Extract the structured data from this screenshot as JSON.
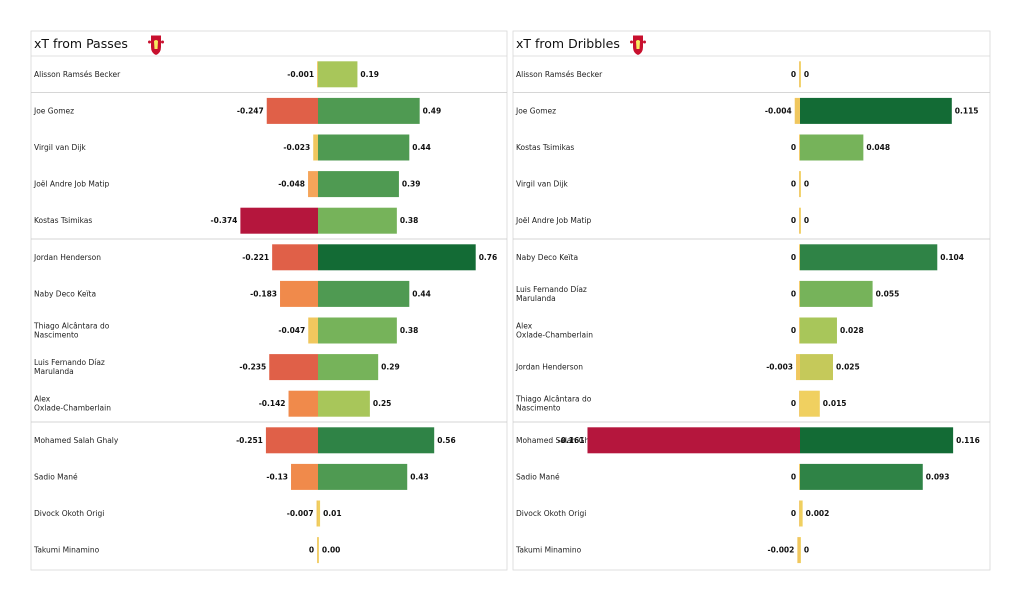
{
  "colors": {
    "neg_scale": [
      "#f0c75e",
      "#f5a55a",
      "#f08a4b",
      "#e06048",
      "#b5163d"
    ],
    "pos_scale": [
      "#f0d060",
      "#c5c95a",
      "#a8c65a",
      "#76b35a",
      "#4f9a52",
      "#2f8346",
      "#136b35"
    ],
    "crest_red": "#c8102e",
    "crest_gold": "#f6eb61",
    "frame": "#d8d8d8",
    "divider": "#c8c8c8"
  },
  "chart_data": [
    {
      "type": "bar",
      "title": "xT from Passes",
      "icon": "liverpool-crest-icon",
      "groups": [
        1,
        4,
        5,
        4
      ],
      "categories": [
        "Alisson Ramsés Becker",
        "Joe Gomez",
        "Virgil van Dijk",
        "Joël Andre Job Matip",
        "Kostas Tsimikas",
        "Jordan Henderson",
        "Naby Deco Keïta",
        "Thiago Alcântara do Nascimento",
        "Luis Fernando Díaz Marulanda",
        "Alex Oxlade-Chamberlain",
        "Mohamed  Salah Ghaly",
        "Sadio Mané",
        "Divock Okoth Origi",
        "Takumi Minamino"
      ],
      "series": [
        {
          "values": [
            -0.001,
            -0.247,
            -0.023,
            -0.048,
            -0.374,
            -0.221,
            -0.183,
            -0.047,
            -0.235,
            -0.142,
            -0.251,
            -0.13,
            -0.007,
            0
          ]
        },
        {
          "values": [
            0.19,
            0.49,
            0.44,
            0.39,
            0.38,
            0.76,
            0.44,
            0.38,
            0.29,
            0.25,
            0.56,
            0.43,
            0.01,
            0.0
          ]
        }
      ],
      "labels_neg": [
        "-0.001",
        "-0.247",
        "-0.023",
        "-0.048",
        "-0.374",
        "-0.221",
        "-0.183",
        "-0.047",
        "-0.235",
        "-0.142",
        "-0.251",
        "-0.13",
        "-0.007",
        "0"
      ],
      "labels_pos": [
        "0.19",
        "0.49",
        "0.44",
        "0.39",
        "0.38",
        "0.76",
        "0.44",
        "0.38",
        "0.29",
        "0.25",
        "0.56",
        "0.43",
        "0.01",
        "0.00"
      ],
      "neg_fill_levels": [
        0,
        3,
        0,
        1,
        4,
        3,
        2,
        0,
        3,
        2,
        3,
        2,
        0,
        0
      ],
      "pos_fill_levels": [
        2,
        4,
        4,
        4,
        3,
        6,
        4,
        3,
        3,
        2,
        5,
        4,
        0,
        0
      ],
      "xlim": [
        -0.46,
        0.82
      ]
    },
    {
      "type": "bar",
      "title": "xT from Dribbles",
      "icon": "liverpool-crest-icon",
      "groups": [
        1,
        4,
        5,
        4
      ],
      "categories": [
        "Alisson Ramsés Becker",
        "Joe Gomez",
        "Kostas Tsimikas",
        "Virgil van Dijk",
        "Joël Andre Job Matip",
        "Naby Deco Keïta",
        "Luis Fernando Díaz Marulanda",
        "Alex Oxlade-Chamberlain",
        "Jordan Henderson",
        "Thiago Alcântara do Nascimento",
        "Mohamed  Salah Ghaly",
        "Sadio Mané",
        "Divock Okoth Origi",
        "Takumi Minamino"
      ],
      "series": [
        {
          "values": [
            0,
            -0.004,
            0,
            0,
            0,
            0,
            0,
            0,
            -0.003,
            0,
            -0.161,
            0,
            0,
            -0.002
          ]
        },
        {
          "values": [
            0,
            0.115,
            0.048,
            0,
            0,
            0.104,
            0.055,
            0.028,
            0.025,
            0.015,
            0.116,
            0.093,
            0.002,
            0
          ]
        }
      ],
      "labels_neg": [
        "0",
        "-0.004",
        "0",
        "0",
        "0",
        "0",
        "0",
        "0",
        "-0.003",
        "0",
        "-0.161",
        "0",
        "0",
        "-0.002"
      ],
      "labels_pos": [
        "0",
        "0.115",
        "0.048",
        "0",
        "0",
        "0.104",
        "0.055",
        "0.028",
        "0.025",
        "0.015",
        "0.116",
        "0.093",
        "0.002",
        "0"
      ],
      "neg_fill_levels": [
        0,
        0,
        0,
        0,
        0,
        0,
        0,
        0,
        0,
        0,
        4,
        0,
        0,
        0
      ],
      "pos_fill_levels": [
        0,
        6,
        3,
        0,
        0,
        5,
        3,
        2,
        1,
        0,
        6,
        5,
        0,
        0
      ],
      "xlim": [
        -0.185,
        0.125
      ]
    }
  ]
}
